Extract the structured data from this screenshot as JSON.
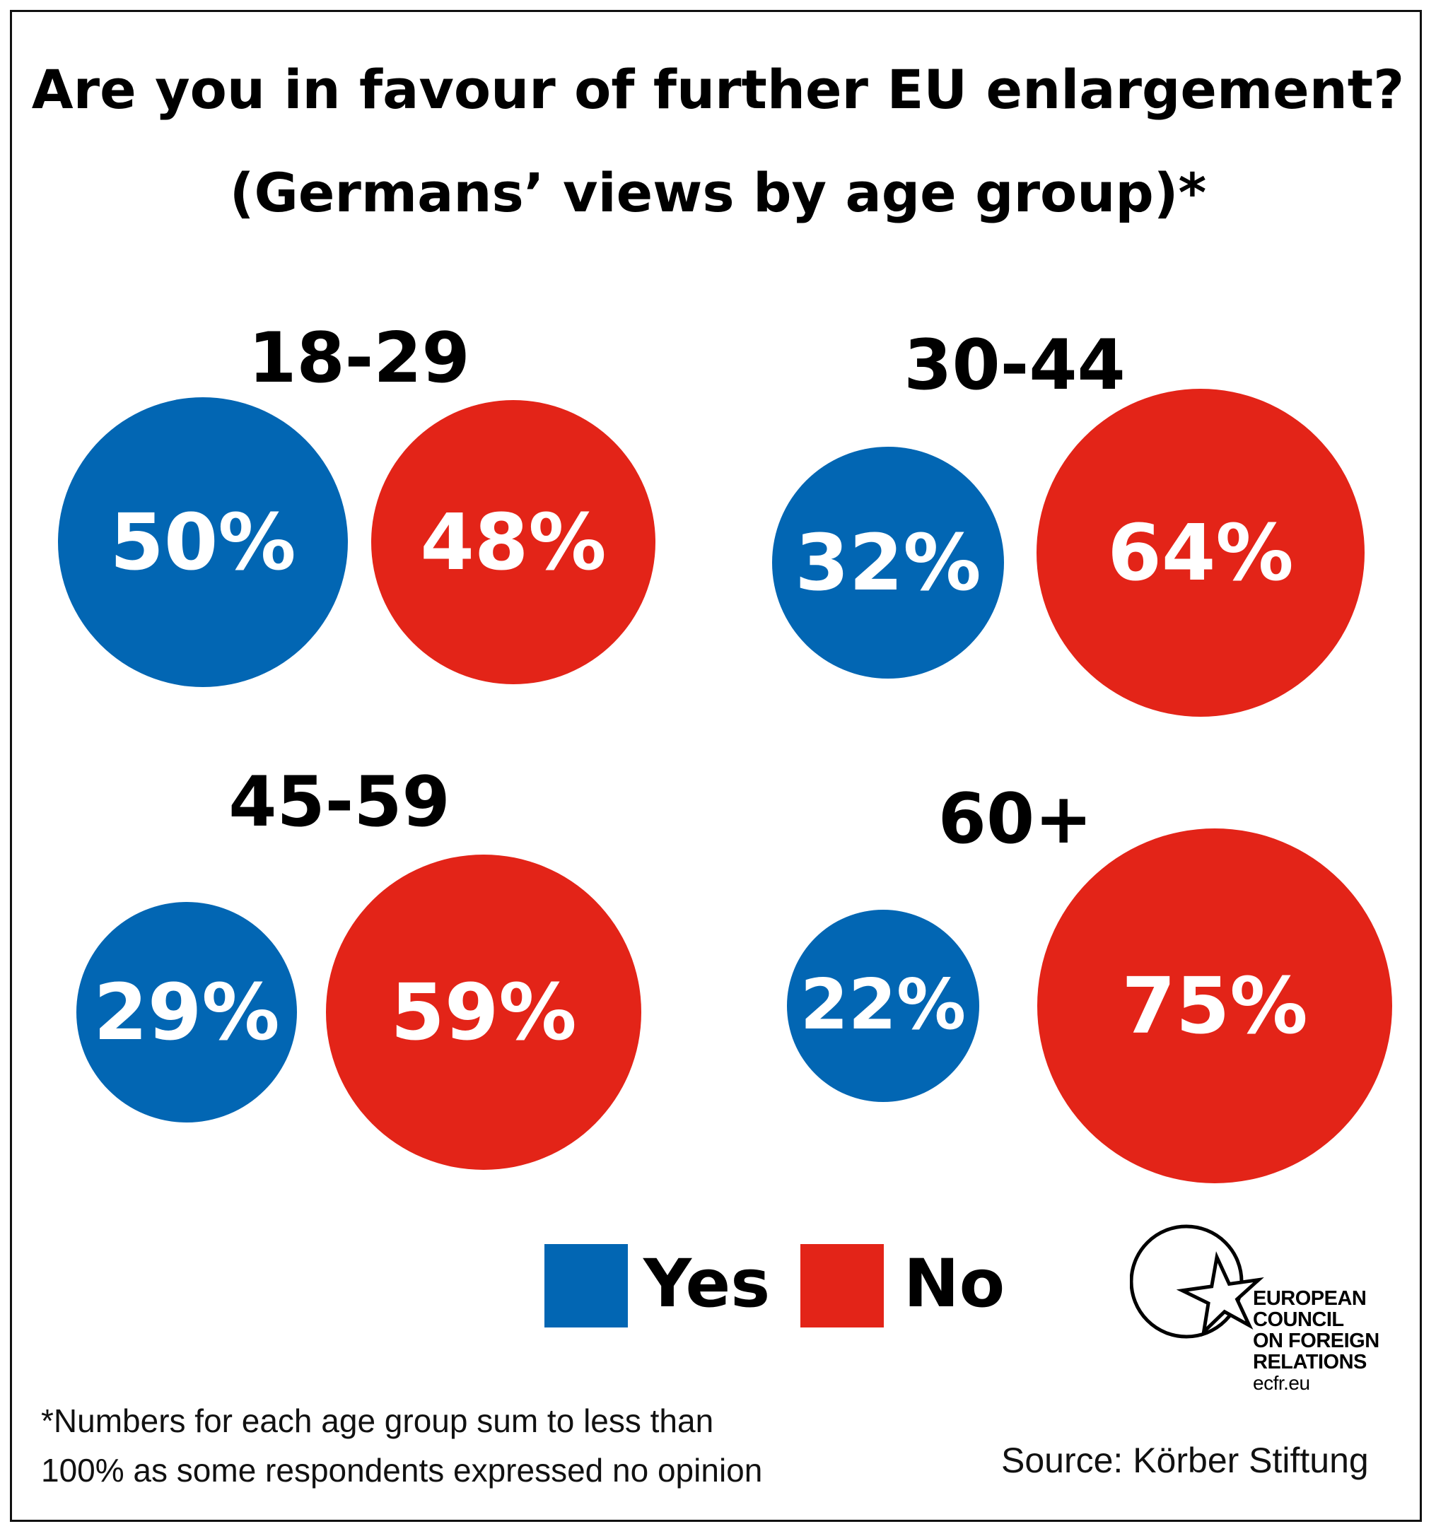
{
  "title": "Are you in favour of further EU enlargement?",
  "subtitle": "(Germans’ views by age group)*",
  "colors": {
    "yes": "#0266b3",
    "no": "#e32418"
  },
  "chart_data": {
    "type": "bubble",
    "groups": [
      {
        "label": "18-29",
        "yes": 50,
        "no": 48,
        "yes_label": "50%",
        "no_label": "48%"
      },
      {
        "label": "30-44",
        "yes": 32,
        "no": 64,
        "yes_label": "32%",
        "no_label": "64%"
      },
      {
        "label": "45-59",
        "yes": 29,
        "no": 59,
        "yes_label": "29%",
        "no_label": "59%"
      },
      {
        "label": "60+",
        "yes": 22,
        "no": 75,
        "yes_label": "22%",
        "no_label": "75%"
      }
    ],
    "legend": [
      {
        "key": "yes",
        "label": "Yes"
      },
      {
        "key": "no",
        "label": "No"
      }
    ]
  },
  "footnote": {
    "line1": "*Numbers for each age group sum to less than",
    "line2": "100% as some respondents expressed no opinion"
  },
  "source": "Source: Körber Stiftung",
  "logo": {
    "lines": [
      "EUROPEAN",
      "COUNCIL",
      "ON FOREIGN",
      "RELATIONS"
    ],
    "url": "ecfr.eu"
  }
}
